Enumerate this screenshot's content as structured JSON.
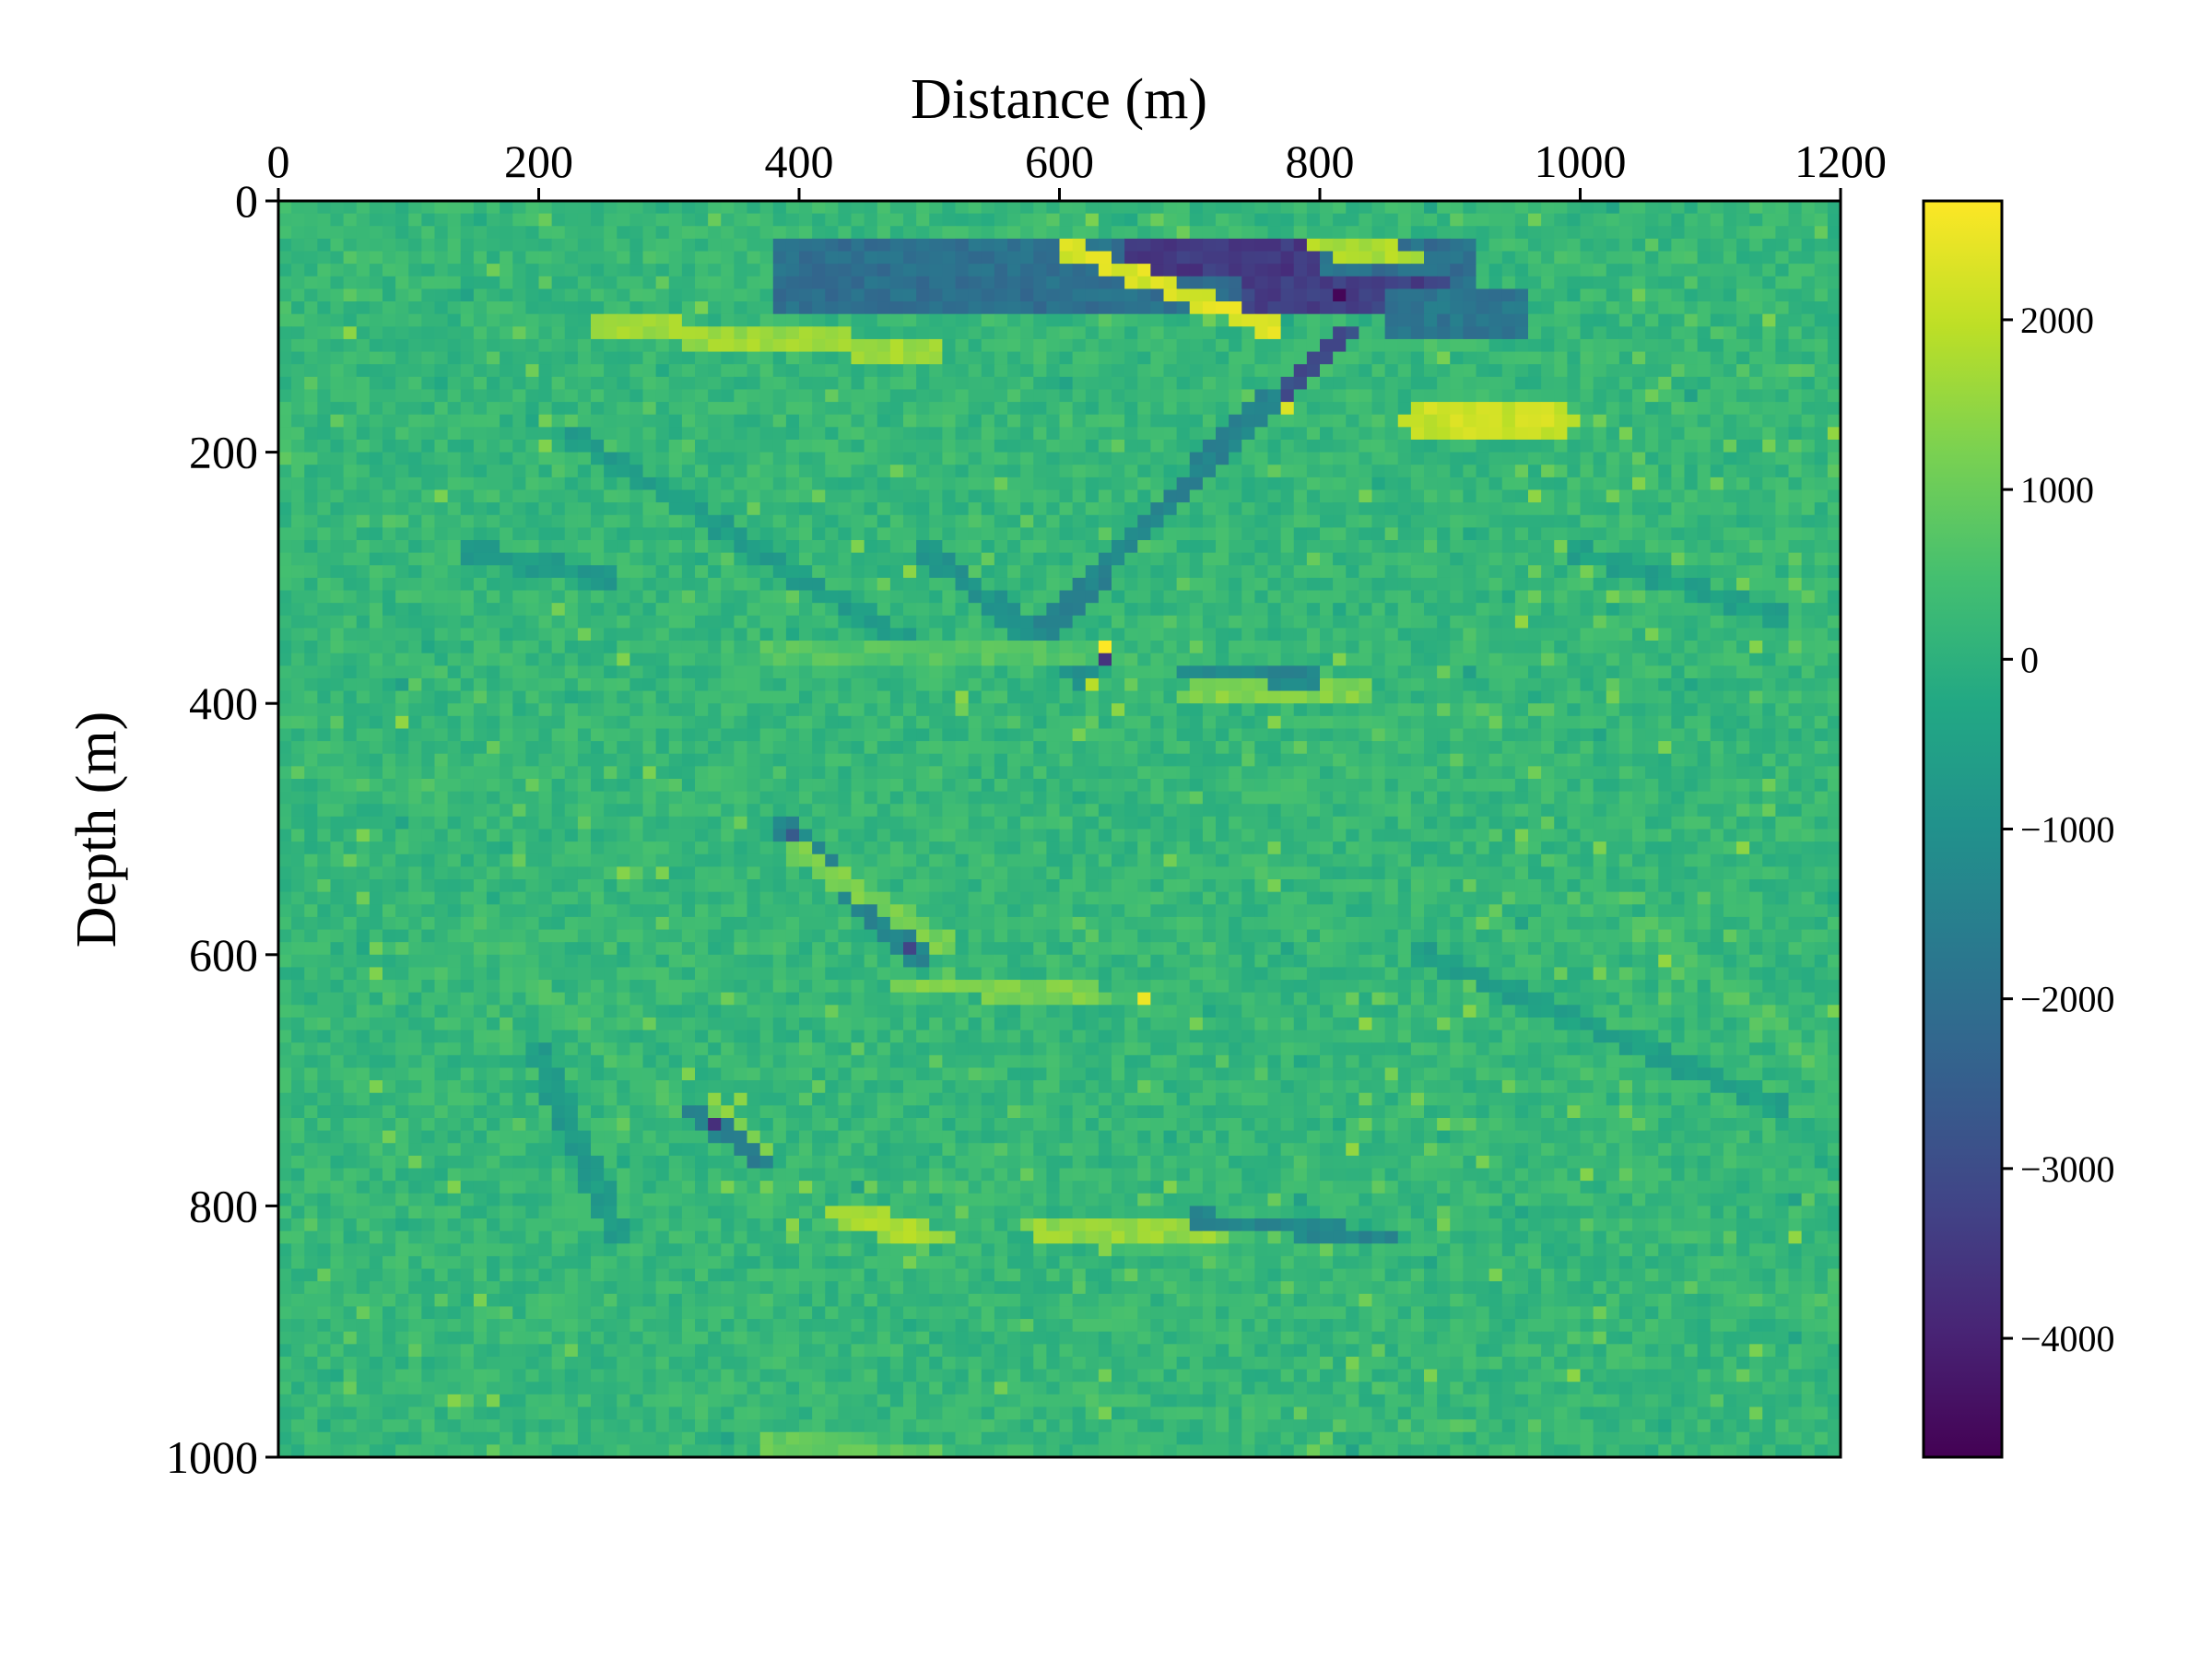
{
  "chart_data": {
    "type": "heatmap",
    "title": "",
    "xlabel": "Distance (m)",
    "ylabel": "Depth (m)",
    "x_axis_position": "top",
    "xlim": [
      0,
      1200
    ],
    "ylim": [
      1000,
      0
    ],
    "xticks": [
      0,
      200,
      400,
      600,
      800,
      1000,
      1200
    ],
    "yticks": [
      0,
      200,
      400,
      600,
      800,
      1000
    ],
    "xtick_labels": [
      "0",
      "200",
      "400",
      "600",
      "800",
      "1000",
      "1200"
    ],
    "ytick_labels": [
      "0",
      "200",
      "400",
      "600",
      "800",
      "1000"
    ],
    "colormap": "viridis",
    "colorbar": {
      "vmin": -4700,
      "vmax": 2700,
      "ticks": [
        2000,
        1000,
        0,
        -1000,
        -2000,
        -3000,
        -4000
      ],
      "tick_labels": [
        "2000",
        "1000",
        "0",
        "−1000",
        "−2000",
        "−3000",
        "−4000"
      ],
      "placement": "right"
    },
    "background_value": 200,
    "grid": false,
    "features": [
      {
        "kind": "band",
        "x0": 380,
        "x1": 920,
        "depth": 60,
        "half_width": 25,
        "value": -2000
      },
      {
        "kind": "band",
        "x0": 650,
        "x1": 800,
        "depth": 45,
        "half_width": 12,
        "value": -3500
      },
      {
        "kind": "band",
        "x0": 740,
        "x1": 900,
        "depth": 75,
        "half_width": 14,
        "value": -3300
      },
      {
        "kind": "band",
        "x0": 850,
        "x1": 960,
        "depth": 90,
        "half_width": 15,
        "value": -1800
      },
      {
        "kind": "line",
        "xa": 610,
        "da": 40,
        "xb": 760,
        "db": 100,
        "width": 8,
        "value": 2300
      },
      {
        "kind": "line",
        "xa": 800,
        "da": 35,
        "xb": 870,
        "db": 45,
        "width": 8,
        "value": 1800
      },
      {
        "kind": "line",
        "xa": 820,
        "da": 105,
        "xb": 760,
        "db": 170,
        "width": 7,
        "value": -3000
      },
      {
        "kind": "line",
        "xa": 760,
        "da": 160,
        "xb": 580,
        "db": 350,
        "width": 9,
        "value": -1400
      },
      {
        "kind": "line",
        "xa": 500,
        "da": 280,
        "xb": 620,
        "db": 380,
        "width": 9,
        "value": -900
      },
      {
        "kind": "line",
        "xa": 250,
        "da": 100,
        "xb": 500,
        "db": 120,
        "width": 10,
        "value": 1600
      },
      {
        "kind": "line",
        "xa": 870,
        "da": 175,
        "xb": 990,
        "db": 175,
        "width": 10,
        "value": 2100
      },
      {
        "kind": "line",
        "xa": 230,
        "da": 190,
        "xb": 480,
        "db": 350,
        "width": 8,
        "value": -600
      },
      {
        "kind": "line",
        "xa": 380,
        "da": 360,
        "xb": 620,
        "db": 360,
        "width": 10,
        "value": 700
      },
      {
        "kind": "line",
        "xa": 700,
        "da": 395,
        "xb": 830,
        "db": 390,
        "width": 10,
        "value": 1300
      },
      {
        "kind": "line",
        "xa": 700,
        "da": 375,
        "xb": 800,
        "db": 380,
        "width": 7,
        "value": -1300
      },
      {
        "kind": "line",
        "xa": 390,
        "da": 500,
        "xb": 490,
        "db": 600,
        "width": 9,
        "value": -1300
      },
      {
        "kind": "line",
        "xa": 400,
        "da": 520,
        "xb": 510,
        "db": 590,
        "width": 8,
        "value": 1200
      },
      {
        "kind": "line",
        "xa": 480,
        "da": 625,
        "xb": 620,
        "db": 630,
        "width": 8,
        "value": 1200
      },
      {
        "kind": "line",
        "xa": 300,
        "da": 715,
        "xb": 370,
        "db": 760,
        "width": 8,
        "value": -1500
      },
      {
        "kind": "line",
        "xa": 330,
        "da": 710,
        "xb": 380,
        "db": 760,
        "width": 6,
        "value": 1300
      },
      {
        "kind": "line",
        "xa": 200,
        "da": 680,
        "xb": 260,
        "db": 820,
        "width": 10,
        "value": -700
      },
      {
        "kind": "line",
        "xa": 430,
        "da": 805,
        "xb": 500,
        "db": 825,
        "width": 10,
        "value": 1700
      },
      {
        "kind": "line",
        "xa": 580,
        "da": 815,
        "xb": 720,
        "db": 825,
        "width": 10,
        "value": 1500
      },
      {
        "kind": "line",
        "xa": 700,
        "da": 810,
        "xb": 850,
        "db": 825,
        "width": 7,
        "value": -1300
      },
      {
        "kind": "line",
        "xa": 150,
        "da": 280,
        "xb": 250,
        "db": 300,
        "width": 8,
        "value": -700
      },
      {
        "kind": "line",
        "xa": 1000,
        "da": 280,
        "xb": 1150,
        "db": 330,
        "width": 8,
        "value": -500
      },
      {
        "kind": "line",
        "xa": 880,
        "da": 600,
        "xb": 1150,
        "db": 720,
        "width": 8,
        "value": -500
      },
      {
        "kind": "line",
        "xa": 1050,
        "da": 580,
        "xb": 1180,
        "db": 680,
        "width": 8,
        "value": 600
      },
      {
        "kind": "line",
        "xa": 150,
        "da": 580,
        "xb": 300,
        "db": 720,
        "width": 8,
        "value": 500
      },
      {
        "kind": "line",
        "xa": 380,
        "da": 990,
        "xb": 500,
        "db": 995,
        "width": 8,
        "value": 900
      },
      {
        "kind": "point",
        "x": 815,
        "depth": 75,
        "value": -4600
      },
      {
        "kind": "point",
        "x": 635,
        "depth": 355,
        "value": 2700
      },
      {
        "kind": "point",
        "x": 635,
        "depth": 365,
        "value": -3600
      },
      {
        "kind": "point",
        "x": 625,
        "depth": 385,
        "value": 1900
      },
      {
        "kind": "point",
        "x": 665,
        "depth": 635,
        "value": 2500
      },
      {
        "kind": "point",
        "x": 485,
        "depth": 595,
        "value": -3200
      },
      {
        "kind": "point",
        "x": 335,
        "depth": 735,
        "value": -3700
      },
      {
        "kind": "point",
        "x": 395,
        "depth": 505,
        "value": -2600
      },
      {
        "kind": "point",
        "x": 770,
        "depth": 160,
        "value": 2300
      },
      {
        "kind": "point",
        "x": 790,
        "depth": 135,
        "value": -3000
      }
    ]
  }
}
